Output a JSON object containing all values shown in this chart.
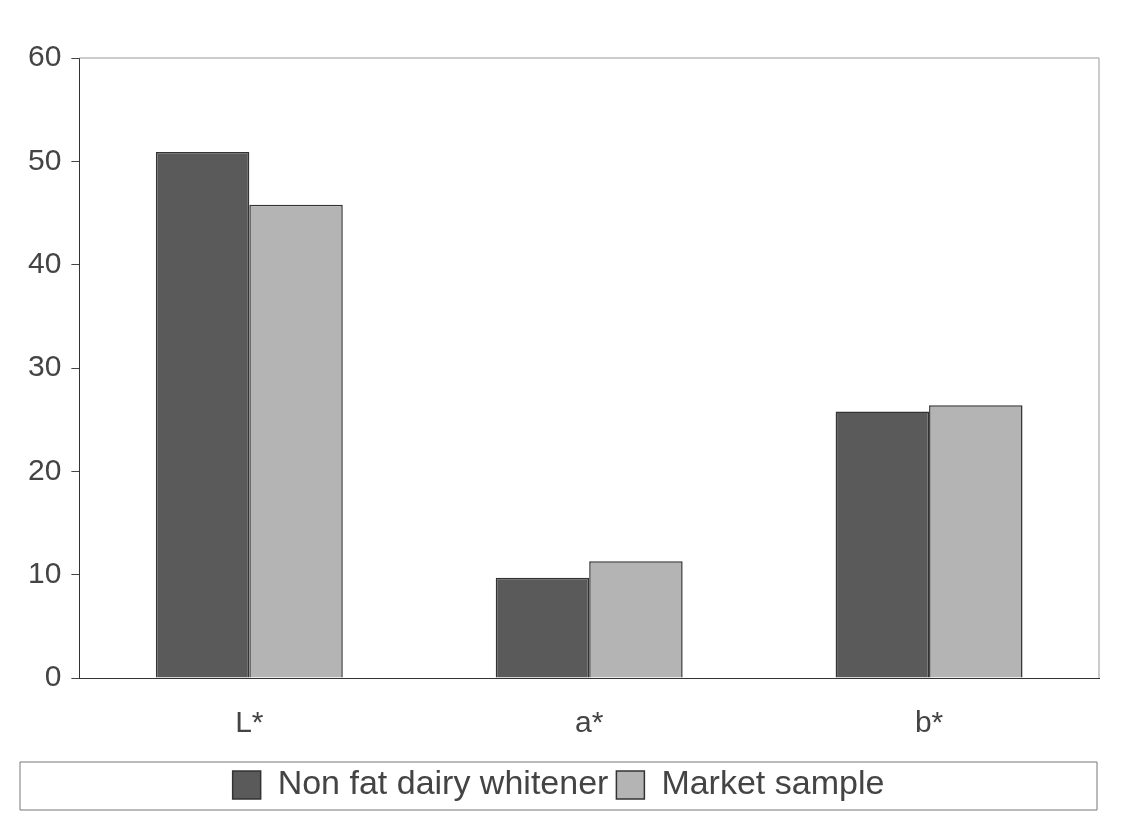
{
  "chart_data": {
    "type": "bar",
    "categories": [
      "L*",
      "a*",
      "b*"
    ],
    "series": [
      {
        "name": "Non fat dairy whitener",
        "color": "#5a5a5a",
        "values": [
          50.9,
          9.7,
          25.8
        ]
      },
      {
        "name": "Market sample",
        "color": "#b4b4b4",
        "values": [
          45.8,
          11.3,
          26.4
        ]
      }
    ],
    "ylim": [
      0,
      60
    ],
    "yticks": [
      0,
      10,
      20,
      30,
      40,
      50,
      60
    ],
    "grid": false,
    "legend": "bottom"
  }
}
